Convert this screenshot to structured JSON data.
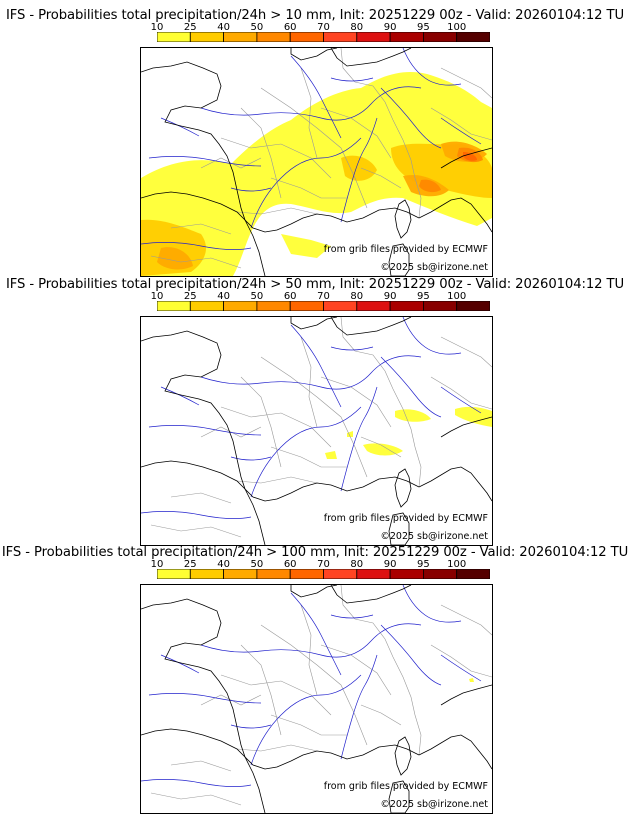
{
  "colors": {
    "scale": [
      "#ffff33",
      "#ffcc00",
      "#ffaa00",
      "#ff8800",
      "#ff6600",
      "#ff4422",
      "#dd1111",
      "#aa0000",
      "#880000",
      "#550000"
    ],
    "coast": "#000000",
    "rivers": "#2222cc",
    "borders": "#9a9a9a"
  },
  "scale_ticks": [
    "10",
    "25",
    "40",
    "50",
    "60",
    "70",
    "80",
    "90",
    "95",
    "100"
  ],
  "panels": [
    {
      "title": "IFS - Probabilities total precipitation/24h > 10 mm, Init: 20251229 00z - Valid: 20260104:12 TU",
      "source_text": "from grib files provided by ECMWF",
      "copyright_text": "©2025 sb@irizone.net",
      "coverage": "wide"
    },
    {
      "title": "IFS - Probabilities total precipitation/24h > 50 mm, Init: 20251229 00z - Valid: 20260104:12 TU",
      "source_text": "from grib files provided by ECMWF",
      "copyright_text": "©2025 sb@irizone.net",
      "coverage": "small"
    },
    {
      "title": "IFS - Probabilities total precipitation/24h > 100 mm, Init: 20251229 00z - Valid: 20260104:12 TU",
      "source_text": "from grib files provided by ECMWF",
      "copyright_text": "©2025 sb@irizone.net",
      "coverage": "none"
    }
  ]
}
